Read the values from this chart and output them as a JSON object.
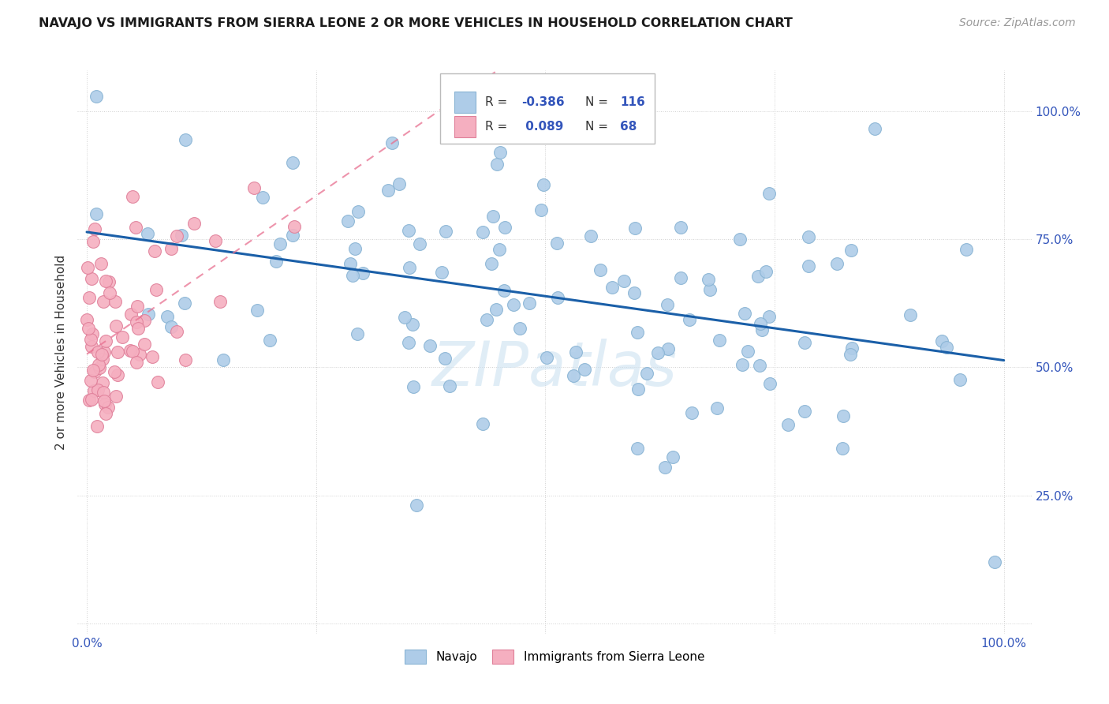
{
  "title": "NAVAJO VS IMMIGRANTS FROM SIERRA LEONE 2 OR MORE VEHICLES IN HOUSEHOLD CORRELATION CHART",
  "source": "Source: ZipAtlas.com",
  "ylabel": "2 or more Vehicles in Household",
  "navajo_color": "#aecce8",
  "navajo_edge_color": "#89b4d4",
  "sierra_leone_color": "#f5afc0",
  "sierra_leone_edge_color": "#e0809a",
  "trend_navajo_color": "#1a5fa8",
  "trend_sierra_color": "#e87090",
  "background_color": "#ffffff",
  "legend_R1": "-0.386",
  "legend_N1": "116",
  "legend_R2": "0.089",
  "legend_N2": "68",
  "navajo_seed": 12345,
  "sierra_seed": 67890
}
